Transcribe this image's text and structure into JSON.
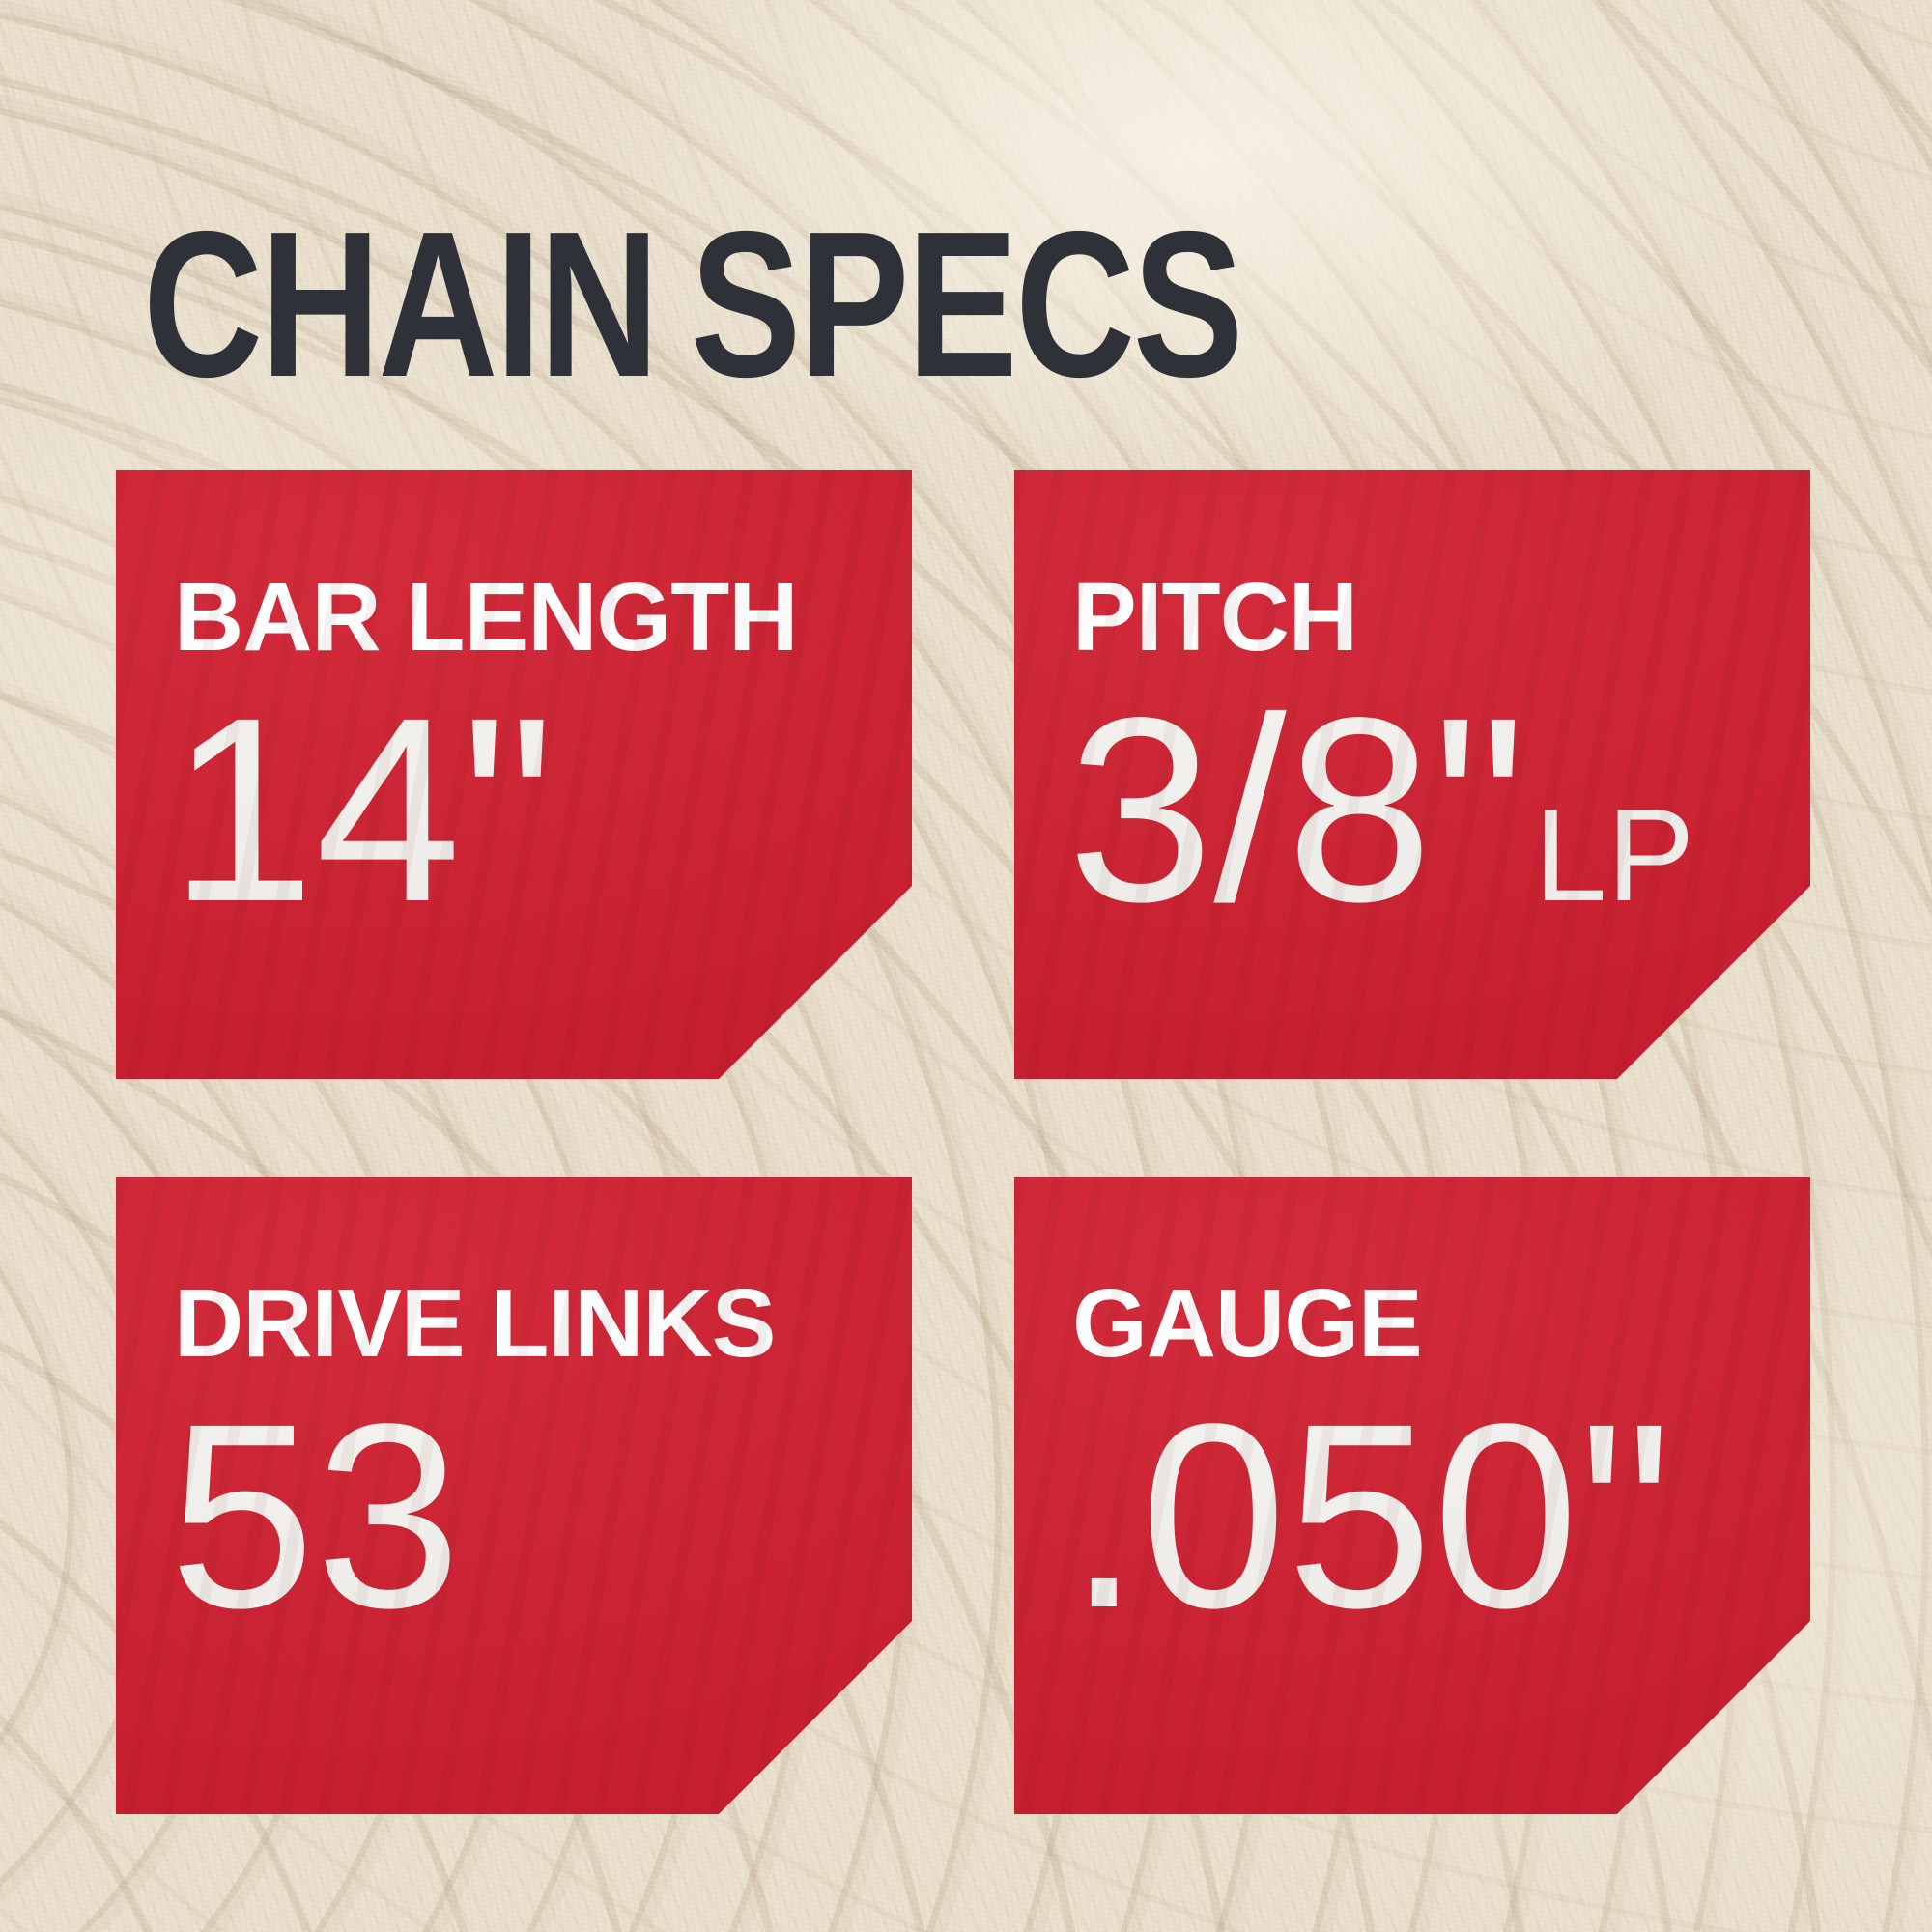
{
  "title": "CHAIN SPECS",
  "theme": {
    "card_red": "#d02031",
    "title_color": "#2e3138",
    "label_color": "#ffffff",
    "value_color": "#f6f4f0",
    "background_cream": "#e9dfcd",
    "wood_ring": "#a48a68"
  },
  "specs": [
    {
      "id": "bar-length",
      "label": "BAR LENGTH",
      "value": "14\"",
      "suffix": ""
    },
    {
      "id": "pitch",
      "label": "PITCH",
      "value": "3/8\"",
      "suffix": "LP"
    },
    {
      "id": "drive-links",
      "label": "DRIVE LINKS",
      "value": "53",
      "suffix": ""
    },
    {
      "id": "gauge",
      "label": "GAUGE",
      "value": ".050\"",
      "suffix": ""
    }
  ]
}
